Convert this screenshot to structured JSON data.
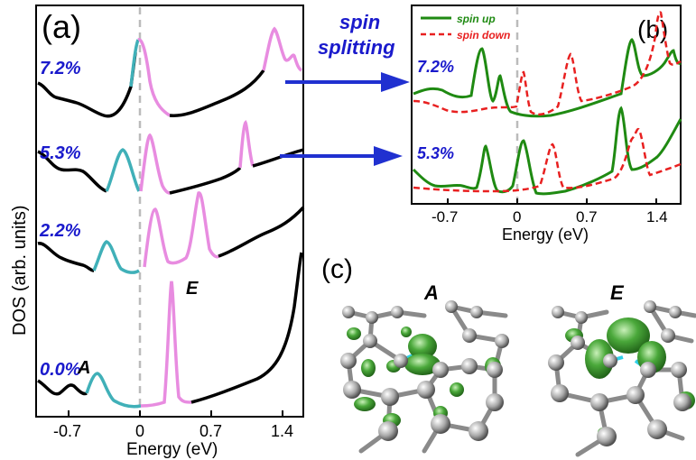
{
  "panel_a": {
    "label": "(a)",
    "ylabel": "DOS (arb. units)",
    "xlabel": "Energy (eV)",
    "xticks": [
      "-0.7",
      "0",
      "0.7",
      "1.4"
    ],
    "curve_labels": [
      "7.2%",
      "5.3%",
      "2.2%",
      "0.0%"
    ],
    "state_labels": {
      "A": "A",
      "E": "E"
    }
  },
  "arrow_label": {
    "line1": "spin",
    "line2": "splitting"
  },
  "panel_b": {
    "label": "(b)",
    "xlabel": "Energy (eV)",
    "xticks": [
      "-0.7",
      "0",
      "0.7",
      "1.4"
    ],
    "curve_labels": [
      "7.2%",
      "5.3%"
    ],
    "legend": {
      "up": "spin up",
      "down": "spin down"
    }
  },
  "panel_c": {
    "label": "(c)",
    "titles": [
      "A",
      "E"
    ]
  },
  "colors": {
    "blue_label": "#1a1acc",
    "green": "#1f8a12",
    "red": "#e82020",
    "teal": "#40b0b8",
    "pink": "#e88ce0",
    "arrow": "#2030d0"
  },
  "chart_data": [
    {
      "type": "line",
      "panel": "(a)",
      "xlabel": "Energy (eV)",
      "ylabel": "DOS (arb. units)",
      "xlim": [
        -1.1,
        1.6
      ],
      "series": [
        {
          "name": "7.2%",
          "peaks_eV": [
            0.0,
            1.3
          ]
        },
        {
          "name": "5.3%",
          "peaks_eV": [
            -0.18,
            0.05,
            1.0
          ]
        },
        {
          "name": "2.2%",
          "peaks_eV": [
            -0.4,
            0.1,
            0.55
          ]
        },
        {
          "name": "0.0%",
          "peaks_eV": [
            -0.5,
            0.28
          ]
        }
      ]
    },
    {
      "type": "line",
      "panel": "(b)",
      "xlabel": "Energy (eV)",
      "xlim": [
        -1.1,
        1.6
      ],
      "series": [
        {
          "name": "spin up",
          "peaks_eV_7.2%": [
            -0.4,
            -0.2,
            1.1
          ],
          "peaks_eV_5.3%": [
            -0.35,
            0.05,
            1.0
          ]
        },
        {
          "name": "spin down",
          "peaks_eV_7.2%": [
            0.05,
            0.5,
            1.4
          ],
          "peaks_eV_5.3%": [
            0.3,
            1.1
          ]
        }
      ]
    }
  ]
}
